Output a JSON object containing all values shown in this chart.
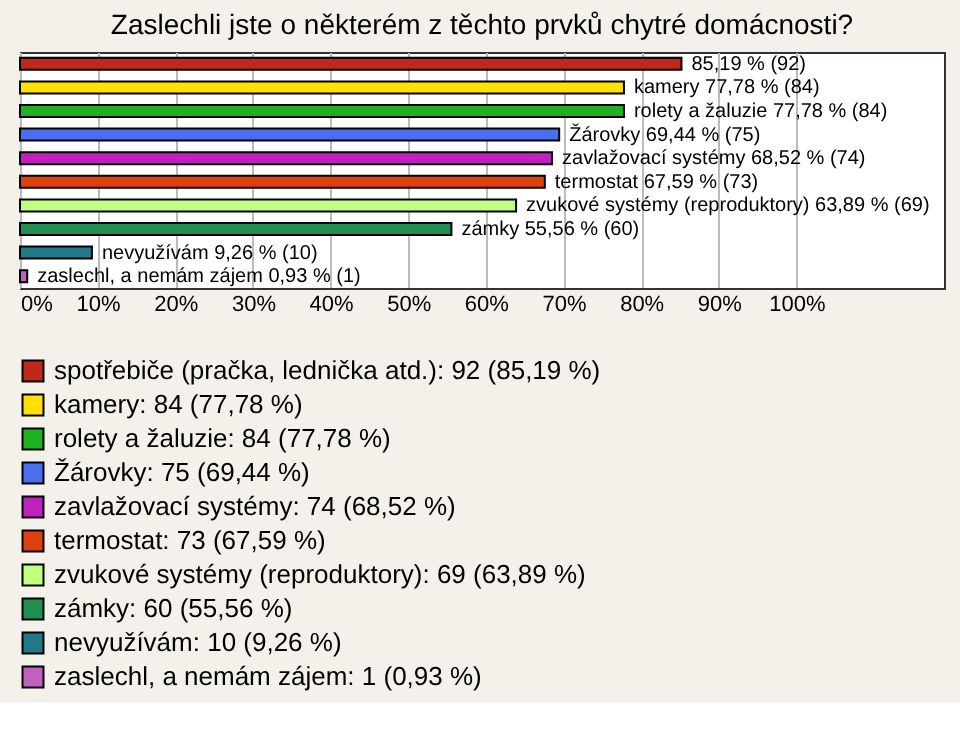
{
  "chart_data": {
    "type": "bar",
    "orientation": "horizontal",
    "stacked": true,
    "title": "Zaslechli jste o některém z těchto prvků chytré domácnosti?",
    "categories": [
      null,
      null,
      null,
      null,
      null,
      null,
      null,
      null,
      null,
      null
    ],
    "series": [
      {
        "name": "spotřebiče (pračka, lednička atd.): 92 (85,19 %)",
        "color": "#c0281c",
        "values": [
          85.19,
          null,
          null,
          null,
          null,
          null,
          null,
          null,
          null,
          null
        ],
        "value_labels": [
          "85,19 % (92)",
          null,
          null,
          null,
          null,
          null,
          null,
          null,
          null,
          null
        ]
      },
      {
        "name": "kamery: 84 (77,78 %)",
        "color": "#ffe000",
        "values": [
          null,
          77.78,
          null,
          null,
          null,
          null,
          null,
          null,
          null,
          null
        ],
        "value_labels": [
          null,
          "kamery 77,78 % (84)",
          null,
          null,
          null,
          null,
          null,
          null,
          null,
          null
        ]
      },
      {
        "name": "rolety a žaluzie: 84 (77,78 %)",
        "color": "#20b020",
        "values": [
          null,
          null,
          77.78,
          null,
          null,
          null,
          null,
          null,
          null,
          null
        ],
        "value_labels": [
          null,
          null,
          "rolety a žaluzie 77,78 % (84)",
          null,
          null,
          null,
          null,
          null,
          null,
          null
        ]
      },
      {
        "name": "Žárovky: 75 (69,44 %)",
        "color": "#4a6ef0",
        "values": [
          null,
          null,
          null,
          69.44,
          null,
          null,
          null,
          null,
          null,
          null
        ],
        "value_labels": [
          null,
          null,
          null,
          "Žárovky 69,44 % (75)",
          null,
          null,
          null,
          null,
          null,
          null
        ]
      },
      {
        "name": "zavlažovací systémy: 74 (68,52 %)",
        "color": "#c020c0",
        "values": [
          null,
          null,
          null,
          null,
          68.52,
          null,
          null,
          null,
          null,
          null
        ],
        "value_labels": [
          null,
          null,
          null,
          null,
          "zavlažovací systémy 68,52 % (74)",
          null,
          null,
          null,
          null,
          null
        ]
      },
      {
        "name": "termostat: 73 (67,59 %)",
        "color": "#e04010",
        "values": [
          null,
          null,
          null,
          null,
          null,
          67.59,
          null,
          null,
          null,
          null
        ],
        "value_labels": [
          null,
          null,
          null,
          null,
          null,
          "termostat 67,59 % (73)",
          null,
          null,
          null,
          null
        ]
      },
      {
        "name": "zvukové systémy (reproduktory): 69 (63,89 %)",
        "color": "#c0ff80",
        "values": [
          null,
          null,
          null,
          null,
          null,
          null,
          63.89,
          null,
          null,
          null
        ],
        "value_labels": [
          null,
          null,
          null,
          null,
          null,
          null,
          "zvukové systémy (reproduktory) 63,89 % (69)",
          null,
          null,
          null
        ]
      },
      {
        "name": "zámky: 60 (55,56 %)",
        "color": "#209050",
        "values": [
          null,
          null,
          null,
          null,
          null,
          null,
          null,
          55.56,
          null,
          null
        ],
        "value_labels": [
          null,
          null,
          null,
          null,
          null,
          null,
          null,
          "zámky 55,56 % (60)",
          null,
          null
        ]
      },
      {
        "name": "nevyužívám: 10 (9,26 %)",
        "color": "#207888",
        "values": [
          null,
          null,
          null,
          null,
          null,
          null,
          null,
          null,
          9.26,
          null
        ],
        "value_labels": [
          null,
          null,
          null,
          null,
          null,
          null,
          null,
          null,
          "nevyužívám 9,26 % (10)",
          null
        ]
      },
      {
        "name": "zaslechl, a nemám zájem: 1 (0,93 %)",
        "color": "#c060c0",
        "values": [
          null,
          null,
          null,
          null,
          null,
          null,
          null,
          null,
          null,
          0.93
        ],
        "value_labels": [
          null,
          null,
          null,
          null,
          null,
          null,
          null,
          null,
          null,
          "zaslechl, a nemám zájem 0,93 % (1)"
        ]
      }
    ],
    "xlim": [
      0,
      119
    ],
    "xticks": [
      {
        "value": 0,
        "label": "0%"
      },
      {
        "value": 10,
        "label": "10%"
      },
      {
        "value": 20,
        "label": "20%"
      },
      {
        "value": 30,
        "label": "30%"
      },
      {
        "value": 40,
        "label": "40%"
      },
      {
        "value": 50,
        "label": "50%"
      },
      {
        "value": 60,
        "label": "60%"
      },
      {
        "value": 70,
        "label": "70%"
      },
      {
        "value": 80,
        "label": "80%"
      },
      {
        "value": 90,
        "label": "90%"
      },
      {
        "value": 100,
        "label": "100%"
      }
    ],
    "grid": "x",
    "legend": "bottom",
    "tick_labels": "x"
  }
}
